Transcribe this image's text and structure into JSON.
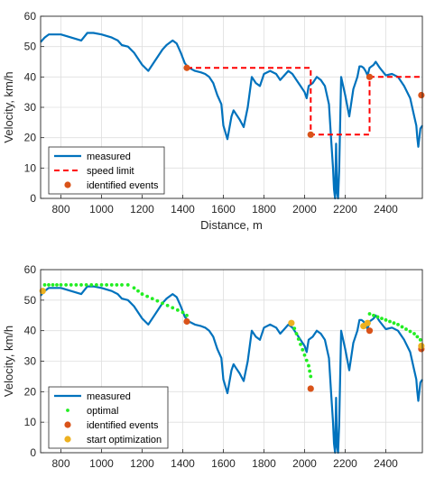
{
  "colors": {
    "measured": "#0072BD",
    "speed_limit": "#FF0000",
    "identified": "#D95319",
    "optimal": "#22EE22",
    "start": "#EDB120",
    "grid": "#DFDFDF",
    "axis": "#262626"
  },
  "chart_data": [
    {
      "type": "line",
      "xlabel": "Distance, m",
      "ylabel": "Velocity, km/h",
      "xlim": [
        700,
        2580
      ],
      "ylim": [
        0,
        60
      ],
      "xticks": [
        800,
        1000,
        1200,
        1400,
        1600,
        1800,
        2000,
        2200,
        2400
      ],
      "yticks": [
        0,
        10,
        20,
        30,
        40,
        50,
        60
      ],
      "grid": true,
      "legend_location": "bottom-left",
      "series": [
        {
          "name": "measured",
          "style": "solid",
          "x": [
            700,
            720,
            740,
            760,
            800,
            850,
            900,
            930,
            960,
            1000,
            1050,
            1080,
            1100,
            1130,
            1160,
            1180,
            1200,
            1230,
            1260,
            1280,
            1300,
            1320,
            1350,
            1370,
            1390,
            1410,
            1430,
            1460,
            1490,
            1510,
            1530,
            1550,
            1570,
            1590,
            1600,
            1620,
            1640,
            1650,
            1660,
            1680,
            1700,
            1720,
            1740,
            1760,
            1780,
            1800,
            1830,
            1860,
            1880,
            1900,
            1920,
            1940,
            1960,
            1980,
            2000,
            2010,
            2020,
            2040,
            2060,
            2080,
            2100,
            2120,
            2130,
            2140,
            2145,
            2150,
            2155,
            2160,
            2165,
            2170,
            2180,
            2200,
            2220,
            2240,
            2260,
            2270,
            2280,
            2290,
            2300,
            2310,
            2320,
            2340,
            2350,
            2370,
            2400,
            2430,
            2460,
            2490,
            2520,
            2540,
            2550,
            2555,
            2560,
            2570,
            2580
          ],
          "y": [
            51.5,
            53,
            54,
            54,
            54,
            53,
            52,
            54.5,
            54.5,
            54,
            53,
            52,
            50.5,
            50,
            48,
            46,
            44,
            42,
            45,
            47,
            49,
            50.5,
            52,
            51,
            48,
            44.5,
            43,
            42,
            41.5,
            41,
            40,
            38,
            34,
            31,
            24,
            19.5,
            27,
            29,
            28,
            26,
            23.5,
            30,
            40,
            38,
            37,
            41,
            42,
            41,
            39,
            40.5,
            42,
            41,
            39,
            37,
            35,
            33,
            37,
            38,
            40,
            39,
            37,
            31,
            20,
            10,
            3,
            0,
            18,
            2,
            0,
            9,
            40,
            34,
            27,
            36,
            40,
            43.5,
            43.5,
            43,
            42,
            40.5,
            43,
            44,
            45,
            43,
            40.5,
            41,
            40,
            37,
            33,
            27,
            24,
            20,
            17,
            23,
            24
          ]
        },
        {
          "name": "speed limit",
          "style": "dashed",
          "x": [
            1420,
            2030,
            2030,
            2320,
            2320,
            2580
          ],
          "y": [
            43,
            43,
            21,
            21,
            40,
            40
          ]
        }
      ],
      "points": [
        {
          "name": "identified events",
          "x": [
            1420,
            2030,
            2320,
            2575
          ],
          "y": [
            43,
            21,
            40,
            34
          ]
        }
      ]
    },
    {
      "type": "line",
      "xlabel": "",
      "ylabel": "Velocity, km/h",
      "xlim": [
        700,
        2580
      ],
      "ylim": [
        0,
        60
      ],
      "xticks": [
        800,
        1000,
        1200,
        1400,
        1600,
        1800,
        2000,
        2200,
        2400
      ],
      "yticks": [
        0,
        10,
        20,
        30,
        40,
        50,
        60
      ],
      "grid": true,
      "legend_location": "bottom-left",
      "series": [
        {
          "name": "measured",
          "style": "solid",
          "x": [
            700,
            720,
            740,
            760,
            800,
            850,
            900,
            930,
            960,
            1000,
            1050,
            1080,
            1100,
            1130,
            1160,
            1180,
            1200,
            1230,
            1260,
            1280,
            1300,
            1320,
            1350,
            1370,
            1390,
            1410,
            1430,
            1460,
            1490,
            1510,
            1530,
            1550,
            1570,
            1590,
            1600,
            1620,
            1640,
            1650,
            1660,
            1680,
            1700,
            1720,
            1740,
            1760,
            1780,
            1800,
            1830,
            1860,
            1880,
            1900,
            1920,
            1940,
            1960,
            1980,
            2000,
            2010,
            2020,
            2040,
            2060,
            2080,
            2100,
            2120,
            2130,
            2140,
            2145,
            2150,
            2155,
            2160,
            2165,
            2170,
            2180,
            2200,
            2220,
            2240,
            2260,
            2270,
            2280,
            2290,
            2300,
            2310,
            2320,
            2340,
            2350,
            2370,
            2400,
            2430,
            2460,
            2490,
            2520,
            2540,
            2550,
            2555,
            2560,
            2570,
            2580
          ],
          "y": [
            51.5,
            53,
            54,
            54,
            54,
            53,
            52,
            54.5,
            54.5,
            54,
            53,
            52,
            50.5,
            50,
            48,
            46,
            44,
            42,
            45,
            47,
            49,
            50.5,
            52,
            51,
            48,
            44.5,
            43,
            42,
            41.5,
            41,
            40,
            38,
            34,
            31,
            24,
            19.5,
            27,
            29,
            28,
            26,
            23.5,
            30,
            40,
            38,
            37,
            41,
            42,
            41,
            39,
            40.5,
            42,
            41,
            39,
            37,
            35,
            33,
            37,
            38,
            40,
            39,
            37,
            31,
            20,
            10,
            3,
            0,
            18,
            2,
            0,
            9,
            40,
            34,
            27,
            36,
            40,
            43.5,
            43.5,
            43,
            42,
            40.5,
            43,
            44,
            45,
            43,
            40.5,
            41,
            40,
            37,
            33,
            27,
            24,
            20,
            17,
            23,
            24
          ]
        },
        {
          "name": "optimal",
          "style": "dots",
          "segments": [
            {
              "x": [
                720,
                760,
                800,
                850,
                900,
                950,
                1000,
                1050,
                1100,
                1130,
                1160,
                1200,
                1250,
                1300,
                1350,
                1400,
                1420
              ],
              "y": [
                55,
                55,
                55,
                55,
                55,
                55,
                55,
                55,
                55,
                55,
                54,
                52,
                50.5,
                49,
                47.5,
                46,
                45
              ]
            },
            {
              "x": [
                1940,
                1960,
                1980,
                2000,
                2020,
                2030
              ],
              "y": [
                42.5,
                39,
                35.5,
                32,
                28.5,
                25
              ]
            },
            {
              "x": [
                2320,
                2340,
                2380,
                2420,
                2460,
                2500,
                2540,
                2570
              ],
              "y": [
                45.5,
                45,
                44,
                43,
                42,
                40.5,
                39,
                37
              ]
            }
          ]
        }
      ],
      "points": [
        {
          "name": "identified events",
          "x": [
            1420,
            2030,
            2320,
            2575
          ],
          "y": [
            43,
            21,
            40,
            34
          ]
        },
        {
          "name": "start optimization",
          "x": [
            710,
            1935,
            2290,
            2310,
            2575
          ],
          "y": [
            53,
            42.5,
            41.5,
            42.5,
            35
          ]
        }
      ]
    }
  ]
}
